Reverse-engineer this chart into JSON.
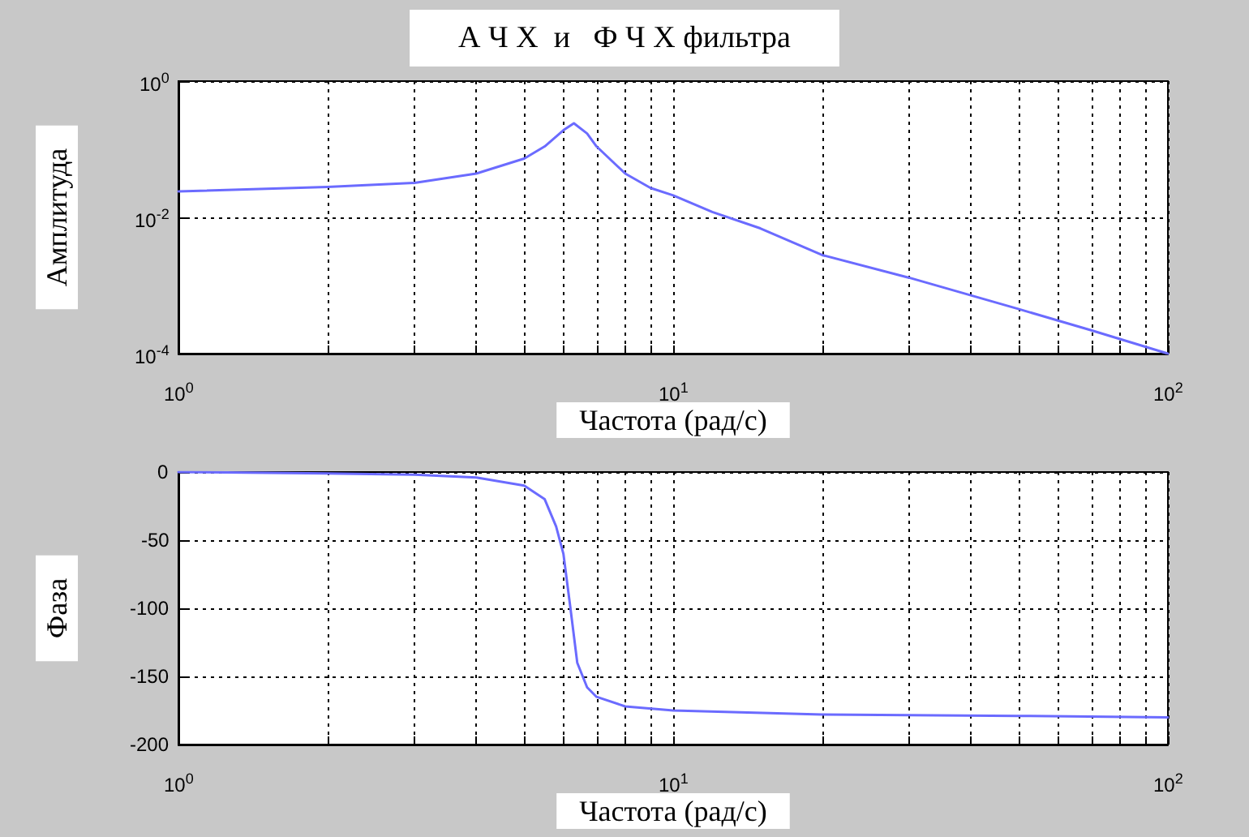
{
  "chart_data": [
    {
      "type": "line",
      "title": "А Ч Х  и   Ф Ч Х фильтра",
      "xlabel": "Частота (рад/с)",
      "ylabel": "Амплитуда",
      "log": "xy",
      "grid": true,
      "marker": "none",
      "line_style": "solid",
      "xlim": [
        1,
        100
      ],
      "ylim": [
        0.0001,
        1
      ],
      "xticks": [
        {
          "value": 1,
          "label": "10$^{0}$"
        },
        {
          "value": 2,
          "label": null
        },
        {
          "value": 3,
          "label": null
        },
        {
          "value": 4,
          "label": null
        },
        {
          "value": 5,
          "label": null
        },
        {
          "value": 6,
          "label": null
        },
        {
          "value": 7,
          "label": null
        },
        {
          "value": 8,
          "label": null
        },
        {
          "value": 9,
          "label": null
        },
        {
          "value": 10,
          "label": "10$^{1}$"
        },
        {
          "value": 20,
          "label": null
        },
        {
          "value": 30,
          "label": null
        },
        {
          "value": 40,
          "label": null
        },
        {
          "value": 50,
          "label": null
        },
        {
          "value": 60,
          "label": null
        },
        {
          "value": 70,
          "label": null
        },
        {
          "value": 80,
          "label": null
        },
        {
          "value": 90,
          "label": null
        },
        {
          "value": 100,
          "label": "10$^{2}$"
        }
      ],
      "yticks": [
        {
          "value": 0.0001,
          "label": "10$^{-4}$"
        },
        {
          "value": 0.01,
          "label": "10$^{-2}$"
        },
        {
          "value": 1,
          "label": "10$^{0}$"
        }
      ],
      "series": [
        {
          "color": "#6b6bff",
          "x": [
            1,
            2,
            3,
            4,
            5,
            5.5,
            6,
            6.3,
            6.7,
            7,
            8,
            9,
            10,
            12,
            15,
            20,
            30,
            50,
            70,
            100
          ],
          "values": [
            0.024,
            0.028,
            0.032,
            0.044,
            0.073,
            0.11,
            0.19,
            0.24,
            0.17,
            0.11,
            0.044,
            0.027,
            0.021,
            0.012,
            0.0069,
            0.0028,
            0.0013,
            0.00045,
            0.00022,
            0.0001
          ]
        }
      ]
    },
    {
      "type": "line",
      "xlabel": "Частота (рад/с)",
      "ylabel": "Фаза",
      "log": "x",
      "grid": true,
      "marker": "none",
      "line_style": "solid",
      "xlim": [
        1,
        100
      ],
      "ylim": [
        -200,
        0
      ],
      "xticks": [
        {
          "value": 1,
          "label": "10$^{0}$"
        },
        {
          "value": 2,
          "label": null
        },
        {
          "value": 3,
          "label": null
        },
        {
          "value": 4,
          "label": null
        },
        {
          "value": 5,
          "label": null
        },
        {
          "value": 6,
          "label": null
        },
        {
          "value": 7,
          "label": null
        },
        {
          "value": 8,
          "label": null
        },
        {
          "value": 9,
          "label": null
        },
        {
          "value": 10,
          "label": "10$^{1}$"
        },
        {
          "value": 20,
          "label": null
        },
        {
          "value": 30,
          "label": null
        },
        {
          "value": 40,
          "label": null
        },
        {
          "value": 50,
          "label": null
        },
        {
          "value": 60,
          "label": null
        },
        {
          "value": 70,
          "label": null
        },
        {
          "value": 80,
          "label": null
        },
        {
          "value": 90,
          "label": null
        },
        {
          "value": 100,
          "label": "10$^{2}$"
        }
      ],
      "yticks": [
        -200,
        -150,
        -100,
        -50,
        0
      ],
      "series": [
        {
          "color": "#6b6bff",
          "x": [
            1,
            2,
            3,
            4,
            5,
            5.5,
            5.8,
            6,
            6.2,
            6.4,
            6.7,
            7,
            8,
            10,
            20,
            50,
            100
          ],
          "values": [
            0,
            -1,
            -2,
            -4,
            -10,
            -20,
            -40,
            -60,
            -100,
            -140,
            -158,
            -165,
            -172,
            -175,
            -178,
            -179,
            -180
          ]
        }
      ]
    }
  ]
}
